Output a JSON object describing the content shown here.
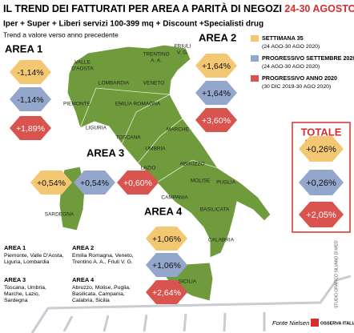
{
  "header": {
    "title": "IL TREND DEI FATTURATI PER AREA A PARITÀ DI NEGOZI",
    "title_highlight": "24-30 AGOSTO 2020",
    "subtitle": "Iper + Super + Liberi servizi 100-399 mq + Discount +Specialisti drug",
    "note": "Trend a valore verso anno precedente"
  },
  "legend": [
    {
      "label": "SETTIMANA 35",
      "period": "(24 AGO-30 AGO 2020)",
      "color": "#f4c872"
    },
    {
      "label": "PROGRESSIVO SETTEMBRE 2020",
      "period": "(24 AGO-30 AGO 2020)",
      "color": "#93a6cc"
    },
    {
      "label": "PROGRESSIVO ANNO 2020",
      "period": "(30 DIC 2019-30 AGO 2020)",
      "color": "#d9534f"
    }
  ],
  "areas": [
    {
      "name": "AREA 1",
      "values": [
        "-1,14%",
        "-1,14%",
        "+1,89%"
      ]
    },
    {
      "name": "AREA 2",
      "values": [
        "+1,64%",
        "+1,64%",
        "+3,60%"
      ]
    },
    {
      "name": "AREA 3",
      "values": [
        "+0,54%",
        "+0,54%",
        "+0,60%"
      ]
    },
    {
      "name": "AREA 4",
      "values": [
        "+1,06%",
        "+1,06%",
        "+2,64%"
      ]
    }
  ],
  "total": {
    "title": [
      "TOTALE",
      "ITALIA"
    ],
    "values": [
      "+0,26%",
      "+0,26%",
      "+2,05%"
    ]
  },
  "regions": [
    [
      "VALLE",
      "D'AOSTA"
    ],
    [
      "PIEMONTE"
    ],
    [
      "LOMBARDIA"
    ],
    [
      "LIGURIA"
    ],
    [
      "TRENTINO",
      "A. A."
    ],
    [
      "FRIULI",
      "V. G."
    ],
    [
      "VENETO"
    ],
    [
      "EMILIA ROMAGNA"
    ],
    [
      "TOSCANA"
    ],
    [
      "MARCHE"
    ],
    [
      "UMBRIA"
    ],
    [
      "LAZIO"
    ],
    [
      "ABRUZZO"
    ],
    [
      "MOLISE"
    ],
    [
      "CAMPANIA"
    ],
    [
      "PUGLIA"
    ],
    [
      "BASILICATA"
    ],
    [
      "CALABRIA"
    ],
    [
      "SICILIA"
    ],
    [
      "SARDEGNA"
    ]
  ],
  "footnotes": [
    {
      "name": "AREA 1",
      "text": [
        "Piemonte, Valle D'Aosta,",
        "Liguria, Lombardia"
      ]
    },
    {
      "name": "AREA 2",
      "text": [
        "Emilia Romagna, Veneto,",
        "Trentino A. A., Friuli V. G."
      ]
    },
    {
      "name": "AREA 3",
      "text": [
        "Toscana, Umbria,",
        "Marche, Lazio,",
        "Sardegna"
      ]
    },
    {
      "name": "AREA 4",
      "text": [
        "Abruzzo, Molise, Puglia,",
        "Basilicata, Campania,",
        "Calabria, Sicilia"
      ]
    }
  ],
  "source": "Fonte Nielsen",
  "credit": "STUDIO GRAFICO SILVANO DI MEO",
  "logo": "OSSERVA ITALIA"
}
